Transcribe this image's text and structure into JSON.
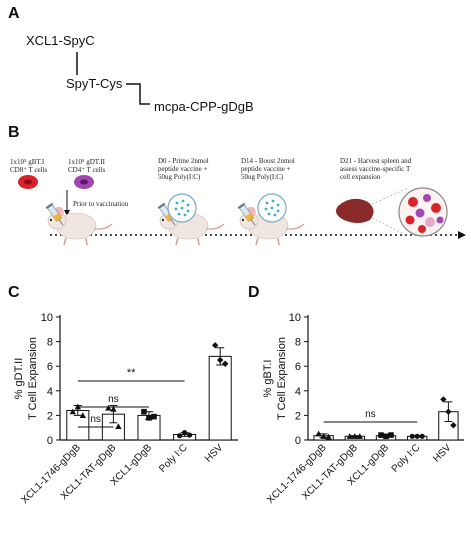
{
  "panels": {
    "a": "A",
    "b": "B",
    "c": "C",
    "d": "D"
  },
  "schema": {
    "xcl1": "XCL1-SpyC",
    "spyt": "SpyT-Cys",
    "mcpa": "mcpa-CPP-gDgB"
  },
  "timeline": {
    "cells_cd8_l1": "1x10⁵ gBT.I",
    "cells_cd8_l2": "CD8⁺ T cells",
    "cells_cd4_l1": "1x10⁵ gDT.II",
    "cells_cd4_l2": "CD4⁺ T cells",
    "prior": "Prior to vaccination",
    "d0_l1": "D0 - Prime 2nmol",
    "d0_l2": "peptide vaccine +",
    "d0_l3": "50ug Poly(I:C)",
    "d14_l1": "D14 - Boost 2nmol",
    "d14_l2": "peptide vaccine +",
    "d14_l3": "50ug Poly(I:C)",
    "d21_l1": "D21 - Harvest spleen and",
    "d21_l2": "assess vaccine-specific  T",
    "d21_l3": "cell expansion"
  },
  "colors": {
    "mouse": "#efe6e1",
    "mouse_ear": "#f2b7b7",
    "cell_red": "#d9232b",
    "cell_purple": "#a346b0",
    "spleen": "#8b2a2a",
    "peptide_dot": "#3fb3c4"
  },
  "chart_data": [
    {
      "type": "bar",
      "panel": "C",
      "ylabel_line1": "% gDT.II",
      "ylabel_line2": "T Cell Expansion",
      "ylim": [
        0,
        10
      ],
      "yticks": [
        "0",
        "2",
        "4",
        "6",
        "8",
        "10"
      ],
      "categories": [
        "XCL1-1746-gDgB",
        "XCL1-TAT-gDgB",
        "XCL1-gDgB",
        "Poly I:C",
        "HSV"
      ],
      "values": [
        2.4,
        2.1,
        2.0,
        0.45,
        6.8
      ],
      "errors": [
        0.4,
        0.7,
        0.3,
        0.15,
        0.7
      ],
      "points": [
        [
          2.3,
          2.7,
          2.0
        ],
        [
          2.6,
          2.5,
          1.1
        ],
        [
          2.3,
          1.8,
          1.9
        ],
        [
          0.35,
          0.6,
          0.4
        ],
        [
          7.7,
          6.5,
          6.2
        ]
      ],
      "markers": [
        "triangle",
        "triangle",
        "square",
        "circle",
        "diamond"
      ],
      "brackets": [
        {
          "from": 0,
          "to": 3,
          "label": "**"
        },
        {
          "from": 0,
          "to": 2,
          "label": "ns"
        },
        {
          "from": 0,
          "to": 1,
          "label": "ns"
        }
      ]
    },
    {
      "type": "bar",
      "panel": "D",
      "ylabel_line1": "% gBT.I",
      "ylabel_line2": "T Cell Expansion",
      "ylim": [
        0,
        10
      ],
      "yticks": [
        "0",
        "2",
        "4",
        "6",
        "8",
        "10"
      ],
      "categories": [
        "XCL1-1746-gDgB",
        "XCL1-TAT-gDgB",
        "XCL1-gDgB",
        "Poly I:C",
        "HSV"
      ],
      "values": [
        0.35,
        0.3,
        0.35,
        0.3,
        2.3
      ],
      "errors": [
        0.15,
        0.05,
        0.1,
        0.05,
        0.8
      ],
      "points": [
        [
          0.5,
          0.3,
          0.25
        ],
        [
          0.3,
          0.3,
          0.3
        ],
        [
          0.4,
          0.3,
          0.4
        ],
        [
          0.3,
          0.3,
          0.3
        ],
        [
          3.3,
          2.3,
          1.2
        ]
      ],
      "markers": [
        "triangle",
        "triangle",
        "square",
        "circle",
        "diamond"
      ],
      "brackets": [
        {
          "from": 0,
          "to": 3,
          "label": "ns"
        }
      ]
    }
  ]
}
